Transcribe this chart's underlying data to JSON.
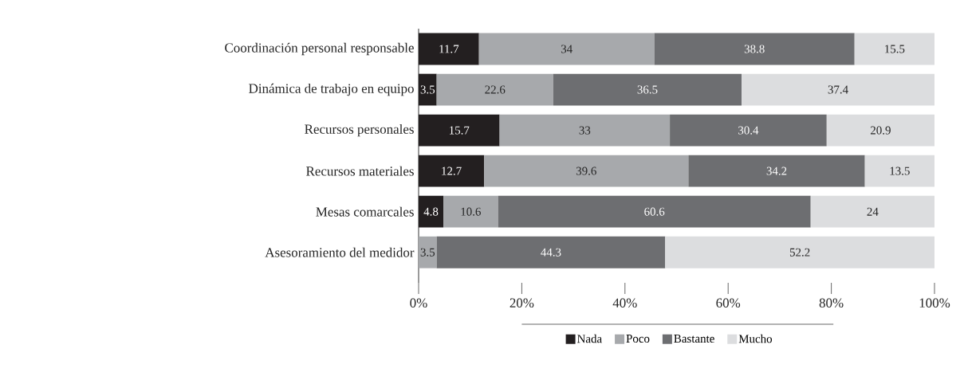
{
  "chart_data": {
    "type": "bar",
    "orientation": "horizontal",
    "stacked": true,
    "data_labels": true,
    "legend": "bottom",
    "categories": [
      "Coordinación personal responsable",
      "Dinámica de trabajo en equipo",
      "Recursos personales",
      "Recursos materiales",
      "Mesas comarcales",
      "Asesoramiento del medidor"
    ],
    "series": [
      {
        "name": "Nada",
        "color": "#231f20",
        "values": [
          11.7,
          3.5,
          15.7,
          12.7,
          4.8,
          null
        ]
      },
      {
        "name": "Poco",
        "color": "#a7a9ac",
        "values": [
          34,
          22.6,
          33,
          39.6,
          10.6,
          3.5
        ]
      },
      {
        "name": "Bastante",
        "color": "#6d6e71",
        "values": [
          38.8,
          36.5,
          30.4,
          34.2,
          60.6,
          44.3
        ]
      },
      {
        "name": "Mucho",
        "color": "#dcdddf",
        "values": [
          15.5,
          37.4,
          20.9,
          13.5,
          24,
          52.2
        ]
      }
    ],
    "xlim": [
      0,
      100
    ],
    "xticks": [
      {
        "value": 0,
        "label": "0%"
      },
      {
        "value": 20,
        "label": "20%"
      },
      {
        "value": 40,
        "label": "40%"
      },
      {
        "value": 60,
        "label": "60%"
      },
      {
        "value": 80,
        "label": "80%"
      },
      {
        "value": 100,
        "label": "100%"
      }
    ]
  }
}
